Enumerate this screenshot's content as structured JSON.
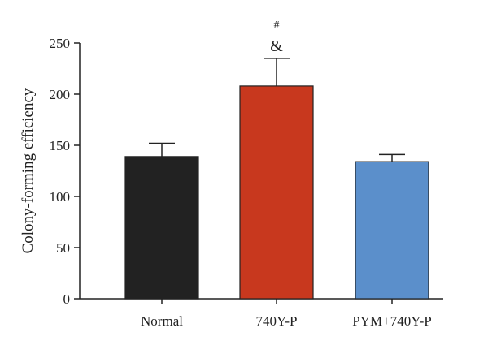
{
  "chart_data": {
    "type": "bar",
    "title": "",
    "xlabel": "",
    "ylabel": "Colony-forming efficiency",
    "ylim": [
      0,
      250
    ],
    "yticks": [
      0,
      50,
      100,
      150,
      200,
      250
    ],
    "grid": false,
    "categories": [
      "Normal",
      "740Y-P",
      "PYM+740Y-P"
    ],
    "values": [
      139,
      208,
      134
    ],
    "errors": [
      13,
      27,
      7
    ],
    "colors": [
      "#222222",
      "#c8381e",
      "#5b8fcb"
    ],
    "annotations": [
      {
        "category": "740Y-P",
        "lines": [
          "#",
          "&"
        ]
      }
    ]
  }
}
